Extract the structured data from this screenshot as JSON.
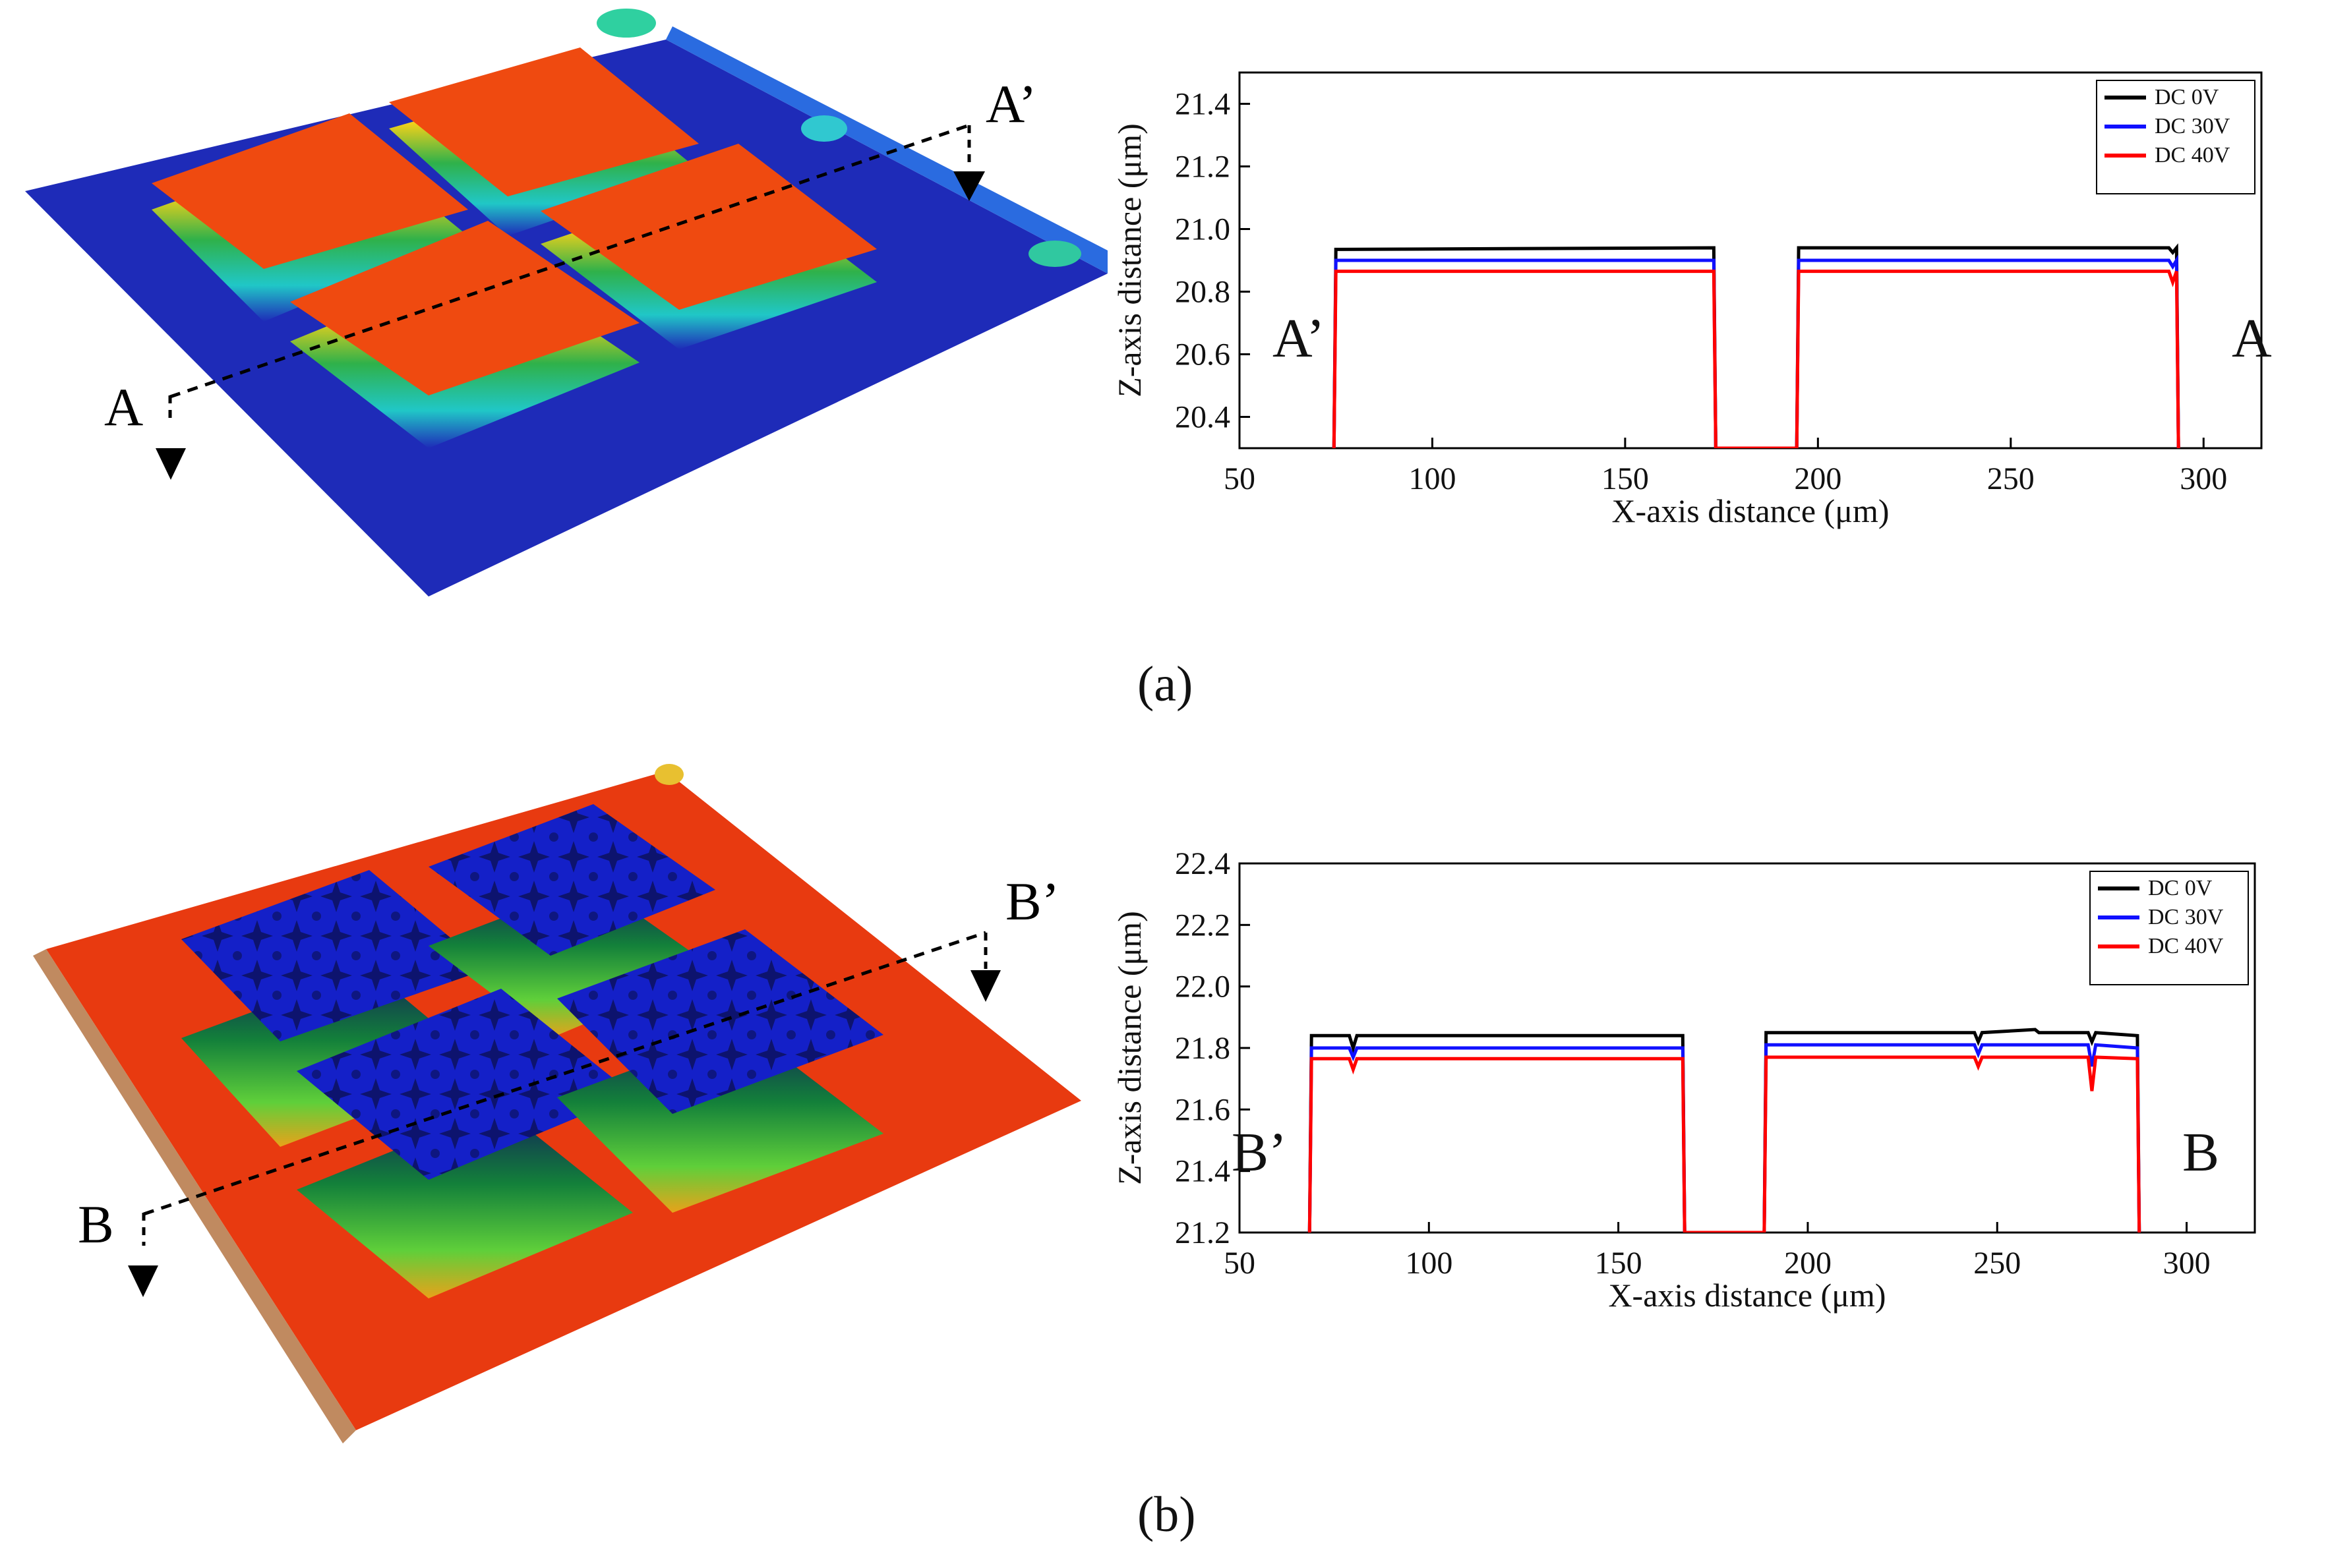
{
  "panels": [
    {
      "label": "(a)",
      "section_start": "A",
      "section_end": "A’",
      "chart_start_label": "A’",
      "chart_end_label": "A",
      "surface_colors": {
        "base": "#1e2bb8",
        "pad_top": "#ef4a10"
      }
    },
    {
      "label": "(b)",
      "section_start": "B",
      "section_end": "B’",
      "chart_start_label": "B’",
      "chart_end_label": "B",
      "surface_colors": {
        "base": "#e83a10",
        "pad_top": "#1420c8"
      }
    }
  ],
  "chart_data": [
    {
      "type": "line",
      "xlabel": "X-axis distance (μm)",
      "ylabel": "Z-axis distance (μm)",
      "xlim": [
        50,
        315
      ],
      "ylim": [
        20.3,
        21.5
      ],
      "xticks": [
        50,
        100,
        150,
        200,
        250,
        300
      ],
      "yticks": [
        20.4,
        20.6,
        20.8,
        21.0,
        21.2,
        21.4
      ],
      "ytick_decimals": 1,
      "legend_position": "top-right",
      "series": [
        {
          "name": "DC 0V",
          "color": "#000000",
          "points": [
            [
              74.5,
              20.3
            ],
            [
              75,
              20.935
            ],
            [
              173,
              20.94
            ],
            [
              173.5,
              20.3
            ],
            [
              194.5,
              20.3
            ],
            [
              195,
              20.94
            ],
            [
              291,
              20.94
            ],
            [
              292,
              20.925
            ],
            [
              293,
              20.94
            ],
            [
              293.5,
              20.3
            ]
          ]
        },
        {
          "name": "DC 30V",
          "color": "#1010ff",
          "points": [
            [
              74.5,
              20.3
            ],
            [
              75,
              20.9
            ],
            [
              173,
              20.9
            ],
            [
              173.5,
              20.3
            ],
            [
              194.5,
              20.3
            ],
            [
              195,
              20.9
            ],
            [
              291,
              20.9
            ],
            [
              292,
              20.88
            ],
            [
              293,
              20.9
            ],
            [
              293.5,
              20.3
            ]
          ]
        },
        {
          "name": "DC 40V",
          "color": "#ff0000",
          "points": [
            [
              74.5,
              20.3
            ],
            [
              75,
              20.865
            ],
            [
              173,
              20.865
            ],
            [
              173.5,
              20.3
            ],
            [
              194.5,
              20.3
            ],
            [
              195,
              20.865
            ],
            [
              291,
              20.865
            ],
            [
              292,
              20.83
            ],
            [
              293,
              20.865
            ],
            [
              293.5,
              20.3
            ]
          ]
        }
      ]
    },
    {
      "type": "line",
      "xlabel": "X-axis distance (μm)",
      "ylabel": "Z-axis distance (μm)",
      "xlim": [
        50,
        318
      ],
      "ylim": [
        21.2,
        22.4
      ],
      "xticks": [
        50,
        100,
        150,
        200,
        250,
        300
      ],
      "yticks": [
        21.2,
        21.4,
        21.6,
        21.8,
        22.0,
        22.2,
        22.4
      ],
      "ytick_decimals": 1,
      "legend_position": "top-right",
      "series": [
        {
          "name": "DC 0V",
          "color": "#000000",
          "points": [
            [
              68.5,
              21.2
            ],
            [
              69,
              21.84
            ],
            [
              79,
              21.84
            ],
            [
              80,
              21.8
            ],
            [
              81,
              21.84
            ],
            [
              167,
              21.84
            ],
            [
              167.5,
              21.2
            ],
            [
              188.5,
              21.2
            ],
            [
              189,
              21.85
            ],
            [
              244,
              21.85
            ],
            [
              245,
              21.82
            ],
            [
              246,
              21.85
            ],
            [
              260,
              21.86
            ],
            [
              261,
              21.85
            ],
            [
              274,
              21.85
            ],
            [
              275,
              21.82
            ],
            [
              276,
              21.85
            ],
            [
              287,
              21.84
            ],
            [
              287.5,
              21.2
            ]
          ]
        },
        {
          "name": "DC 30V",
          "color": "#1010ff",
          "points": [
            [
              68.5,
              21.2
            ],
            [
              69,
              21.8
            ],
            [
              79,
              21.8
            ],
            [
              80,
              21.77
            ],
            [
              81,
              21.8
            ],
            [
              167,
              21.8
            ],
            [
              167.5,
              21.2
            ],
            [
              188.5,
              21.2
            ],
            [
              189,
              21.81
            ],
            [
              244,
              21.81
            ],
            [
              245,
              21.78
            ],
            [
              246,
              21.81
            ],
            [
              274,
              21.81
            ],
            [
              275,
              21.74
            ],
            [
              276,
              21.81
            ],
            [
              287,
              21.8
            ],
            [
              287.5,
              21.2
            ]
          ]
        },
        {
          "name": "DC 40V",
          "color": "#ff0000",
          "points": [
            [
              68.5,
              21.2
            ],
            [
              69,
              21.765
            ],
            [
              79,
              21.765
            ],
            [
              80,
              21.73
            ],
            [
              81,
              21.765
            ],
            [
              167,
              21.765
            ],
            [
              167.5,
              21.2
            ],
            [
              188.5,
              21.2
            ],
            [
              189,
              21.77
            ],
            [
              244,
              21.77
            ],
            [
              245,
              21.74
            ],
            [
              246,
              21.77
            ],
            [
              274,
              21.77
            ],
            [
              275,
              21.66
            ],
            [
              276,
              21.77
            ],
            [
              287,
              21.765
            ],
            [
              287.5,
              21.2
            ]
          ]
        }
      ]
    }
  ]
}
